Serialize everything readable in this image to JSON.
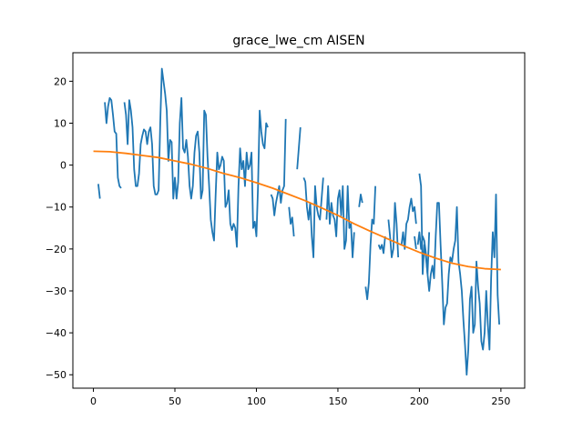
{
  "chart_data": {
    "type": "line",
    "title": "grace_lwe_cm AISEN",
    "xlabel": "",
    "ylabel": "",
    "xlim": [
      -12.6,
      264.6
    ],
    "ylim": [
      -53.2,
      26.8
    ],
    "x_ticks": [
      0,
      50,
      100,
      150,
      200,
      250
    ],
    "y_ticks": [
      20,
      10,
      0,
      -10,
      -20,
      -30,
      -40,
      -50
    ],
    "x_tick_labels": [
      "0",
      "50",
      "100",
      "150",
      "200",
      "250"
    ],
    "y_tick_labels": [
      "20",
      "10",
      "0",
      "−10",
      "−20",
      "−30",
      "−40",
      "−50"
    ],
    "grid": false,
    "legend": "none",
    "series": [
      {
        "color": "#1f77b4",
        "segments": [
          [
            [
              3,
              -4.5
            ],
            [
              4,
              -8
            ]
          ],
          [
            [
              7,
              15
            ],
            [
              8,
              10
            ],
            [
              9,
              14
            ],
            [
              10,
              16
            ],
            [
              11,
              15.5
            ],
            [
              12,
              12
            ],
            [
              13,
              8
            ],
            [
              14,
              7.5
            ],
            [
              15,
              -3
            ],
            [
              16,
              -5
            ],
            [
              17,
              -5.5
            ]
          ],
          [
            [
              19,
              15
            ],
            [
              20,
              12
            ],
            [
              21,
              5
            ],
            [
              22,
              15.5
            ],
            [
              23,
              13
            ],
            [
              24,
              9
            ],
            [
              25,
              -1
            ],
            [
              26,
              -5
            ],
            [
              27,
              -5
            ],
            [
              28,
              -2
            ],
            [
              29,
              5
            ],
            [
              30,
              7
            ],
            [
              31,
              8.5
            ],
            [
              32,
              8
            ],
            [
              33,
              5
            ],
            [
              34,
              8
            ],
            [
              35,
              9
            ],
            [
              36,
              5
            ],
            [
              37,
              -5
            ],
            [
              38,
              -7
            ],
            [
              39,
              -7
            ],
            [
              40,
              -6
            ],
            [
              41,
              10
            ],
            [
              42,
              23
            ],
            [
              43,
              20
            ],
            [
              44,
              17
            ],
            [
              45,
              13
            ],
            [
              46,
              1
            ],
            [
              47,
              6
            ],
            [
              48,
              5.5
            ],
            [
              49,
              -8
            ],
            [
              50,
              -3
            ],
            [
              51,
              -8
            ],
            [
              52,
              -4
            ],
            [
              53,
              10
            ],
            [
              54,
              16
            ],
            [
              55,
              4
            ],
            [
              56,
              3
            ],
            [
              57,
              6
            ],
            [
              58,
              2
            ],
            [
              59,
              -5
            ],
            [
              60,
              -8
            ],
            [
              61,
              -5
            ],
            [
              62,
              3
            ],
            [
              63,
              7
            ],
            [
              64,
              8
            ],
            [
              65,
              3
            ],
            [
              66,
              -8
            ],
            [
              67,
              -6
            ],
            [
              68,
              13
            ],
            [
              69,
              12
            ],
            [
              70,
              2
            ],
            [
              71,
              -5
            ],
            [
              72,
              -13
            ],
            [
              73,
              -16
            ],
            [
              74,
              -18
            ],
            [
              75,
              -7
            ],
            [
              76,
              3
            ],
            [
              77,
              -1
            ],
            [
              78,
              0
            ],
            [
              79,
              2
            ],
            [
              80,
              1
            ],
            [
              81,
              -10
            ],
            [
              82,
              -9
            ],
            [
              83,
              -6
            ],
            [
              84,
              -14
            ],
            [
              85,
              -15.5
            ],
            [
              86,
              -14
            ],
            [
              87,
              -15
            ],
            [
              88,
              -19.5
            ],
            [
              89,
              -5
            ],
            [
              90,
              4
            ],
            [
              91,
              -1
            ],
            [
              92,
              1
            ],
            [
              93,
              -5
            ],
            [
              94,
              3
            ],
            [
              95,
              -1
            ],
            [
              96,
              0
            ],
            [
              97,
              3
            ],
            [
              98,
              -15
            ],
            [
              99,
              -13.5
            ],
            [
              100,
              -17
            ],
            [
              101,
              -5
            ],
            [
              102,
              13
            ],
            [
              103,
              8
            ],
            [
              104,
              5
            ],
            [
              105,
              4
            ],
            [
              106,
              10
            ],
            [
              107,
              9
            ]
          ],
          [
            [
              109,
              -7
            ],
            [
              110,
              -8
            ],
            [
              111,
              -12
            ],
            [
              112,
              -9
            ],
            [
              113,
              -7
            ],
            [
              114,
              -5
            ],
            [
              115,
              -9
            ],
            [
              116,
              -6
            ],
            [
              117,
              -5
            ],
            [
              118,
              11
            ]
          ],
          [
            [
              120,
              -10
            ],
            [
              121,
              -14
            ],
            [
              122,
              -12.5
            ],
            [
              123,
              -17
            ]
          ],
          [
            [
              125,
              -1
            ],
            [
              126,
              4
            ],
            [
              127,
              9
            ]
          ],
          [
            [
              129,
              -3
            ],
            [
              130,
              -4
            ],
            [
              131,
              -10
            ],
            [
              132,
              -13
            ],
            [
              133,
              -9
            ],
            [
              134,
              -17
            ],
            [
              135,
              -22
            ],
            [
              136,
              -5
            ],
            [
              137,
              -10
            ],
            [
              138,
              -12
            ],
            [
              139,
              -13
            ],
            [
              140,
              -8
            ],
            [
              141,
              -3
            ]
          ],
          [
            [
              143,
              -13
            ],
            [
              144,
              -5
            ],
            [
              145,
              -14
            ],
            [
              146,
              -9
            ],
            [
              147,
              -12
            ],
            [
              148,
              -13
            ],
            [
              149,
              -17
            ],
            [
              150,
              -8
            ],
            [
              151,
              -6
            ],
            [
              152,
              -12
            ],
            [
              153,
              -5
            ],
            [
              154,
              -20
            ],
            [
              155,
              -18
            ],
            [
              156,
              -5
            ],
            [
              157,
              -15
            ],
            [
              158,
              -14
            ],
            [
              159,
              -22
            ],
            [
              160,
              -16
            ]
          ],
          [
            [
              163,
              -10
            ],
            [
              164,
              -7
            ],
            [
              165,
              -9
            ]
          ],
          [
            [
              167,
              -29
            ],
            [
              168,
              -32
            ],
            [
              169,
              -28
            ],
            [
              170,
              -19
            ],
            [
              171,
              -13
            ],
            [
              172,
              -14
            ],
            [
              173,
              -5
            ]
          ],
          [
            [
              175,
              -19
            ],
            [
              176,
              -20
            ],
            [
              177,
              -19
            ],
            [
              178,
              -21
            ],
            [
              179,
              -17
            ]
          ],
          [
            [
              181,
              -13
            ],
            [
              182,
              -17
            ],
            [
              183,
              -22
            ],
            [
              184,
              -20
            ],
            [
              185,
              -9
            ],
            [
              186,
              -14
            ],
            [
              187,
              -22
            ]
          ],
          [
            [
              189,
              -19
            ],
            [
              190,
              -16
            ],
            [
              191,
              -20
            ],
            [
              192,
              -14
            ],
            [
              193,
              -13
            ],
            [
              194,
              -10
            ],
            [
              195,
              -8
            ],
            [
              196,
              -11
            ],
            [
              197,
              -10
            ],
            [
              198,
              -14
            ]
          ],
          [
            [
              199,
              -19
            ],
            [
              200,
              -16
            ],
            [
              201,
              -20
            ],
            [
              202,
              -17
            ],
            [
              203,
              -18
            ],
            [
              204,
              -21
            ],
            [
              205,
              -26
            ],
            [
              206,
              -16
            ]
          ],
          [
            [
              197,
              -17
            ],
            [
              198,
              -20
            ]
          ],
          [
            [
              200,
              -2
            ],
            [
              201,
              -5
            ],
            [
              202,
              -26
            ],
            [
              203,
              -19
            ],
            [
              204,
              -22
            ],
            [
              205,
              -26
            ],
            [
              206,
              -30
            ],
            [
              207,
              -26
            ],
            [
              208,
              -24
            ],
            [
              209,
              -27
            ],
            [
              210,
              -17
            ],
            [
              211,
              -9
            ],
            [
              212,
              -9
            ],
            [
              213,
              -19
            ],
            [
              214,
              -28
            ],
            [
              215,
              -38
            ],
            [
              216,
              -34
            ],
            [
              217,
              -33
            ],
            [
              218,
              -26
            ],
            [
              219,
              -22
            ],
            [
              220,
              -23
            ],
            [
              221,
              -20
            ],
            [
              222,
              -18
            ],
            [
              223,
              -10
            ],
            [
              224,
              -23
            ],
            [
              225,
              -26
            ],
            [
              226,
              -30
            ],
            [
              227,
              -37
            ],
            [
              228,
              -43
            ],
            [
              229,
              -50
            ],
            [
              230,
              -44
            ],
            [
              231,
              -32
            ],
            [
              232,
              -29
            ],
            [
              233,
              -40
            ],
            [
              234,
              -38
            ],
            [
              235,
              -23
            ],
            [
              236,
              -29
            ],
            [
              237,
              -33
            ],
            [
              238,
              -42
            ],
            [
              239,
              -44
            ],
            [
              240,
              -40
            ],
            [
              241,
              -30
            ],
            [
              242,
              -38
            ],
            [
              243,
              -44
            ],
            [
              244,
              -27
            ],
            [
              245,
              -16
            ],
            [
              246,
              -22
            ],
            [
              247,
              -7
            ],
            [
              248,
              -31
            ],
            [
              249,
              -38
            ]
          ]
        ]
      },
      {
        "color": "#ff7f0e",
        "points": [
          [
            0,
            3.3
          ],
          [
            10,
            3.2
          ],
          [
            20,
            2.8
          ],
          [
            30,
            2.3
          ],
          [
            40,
            1.8
          ],
          [
            50,
            1.0
          ],
          [
            60,
            0.2
          ],
          [
            70,
            -0.8
          ],
          [
            80,
            -2.0
          ],
          [
            90,
            -3.0
          ],
          [
            100,
            -4.2
          ],
          [
            110,
            -5.5
          ],
          [
            120,
            -7.0
          ],
          [
            130,
            -8.5
          ],
          [
            140,
            -10.2
          ],
          [
            150,
            -12.0
          ],
          [
            160,
            -14.0
          ],
          [
            170,
            -15.8
          ],
          [
            180,
            -17.5
          ],
          [
            190,
            -19.2
          ],
          [
            200,
            -20.8
          ],
          [
            210,
            -22.2
          ],
          [
            220,
            -23.4
          ],
          [
            230,
            -24.2
          ],
          [
            240,
            -24.7
          ],
          [
            250,
            -24.9
          ]
        ]
      }
    ]
  }
}
